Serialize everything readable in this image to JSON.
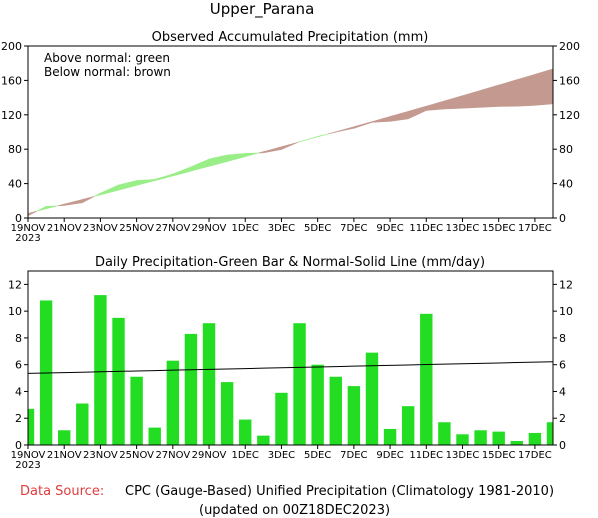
{
  "header": {
    "region": "Upper_Parana"
  },
  "footer": {
    "source_label": "Data Source:",
    "source_text": "CPC (Gauge-Based) Unified Precipitation (Climatology 1981-2010)",
    "updated": "(updated on 00Z18DEC2023)"
  },
  "colors": {
    "above": "#99ee88",
    "below": "#c49a90",
    "bar": "#22dd22",
    "bar_edge": "#119911",
    "line": "#000000"
  },
  "chart_data": [
    {
      "type": "area",
      "title": "Observed Accumulated Precipitation (mm)",
      "annotations": [
        "Above normal: green",
        "Below normal: brown"
      ],
      "x_labels": [
        "19NOV",
        "21NOV",
        "23NOV",
        "25NOV",
        "27NOV",
        "29NOV",
        "1DEC",
        "3DEC",
        "5DEC",
        "7DEC",
        "9DEC",
        "11DEC",
        "13DEC",
        "15DEC",
        "17DEC"
      ],
      "x_year": "2023",
      "dates": [
        "19NOV",
        "20NOV",
        "21NOV",
        "22NOV",
        "23NOV",
        "24NOV",
        "25NOV",
        "26NOV",
        "27NOV",
        "28NOV",
        "29NOV",
        "30NOV",
        "1DEC",
        "2DEC",
        "3DEC",
        "4DEC",
        "5DEC",
        "6DEC",
        "7DEC",
        "8DEC",
        "9DEC",
        "10DEC",
        "11DEC",
        "12DEC",
        "13DEC",
        "14DEC",
        "15DEC",
        "16DEC",
        "17DEC",
        "18DEC"
      ],
      "ylim": [
        0,
        200
      ],
      "yticks": [
        0,
        40,
        80,
        120,
        160,
        200
      ],
      "series": [
        {
          "name": "Observed",
          "values": [
            2.7,
            13.5,
            14.6,
            17.7,
            28.9,
            38.4,
            43.5,
            44.8,
            51.1,
            59.4,
            68.5,
            73.2,
            75.1,
            75.8,
            79.7,
            88.8,
            94.8,
            99.9,
            104.3,
            111.2,
            112.4,
            115.3,
            125.1,
            126.8,
            127.6,
            128.7,
            129.7,
            130.0,
            131.0,
            132.7
          ]
        },
        {
          "name": "Normal",
          "values": [
            5.3,
            10.7,
            16.1,
            21.5,
            26.9,
            32.4,
            37.9,
            43.4,
            48.9,
            54.5,
            60.1,
            65.7,
            71.4,
            77.1,
            82.8,
            88.6,
            94.4,
            100.2,
            106.1,
            112.0,
            118.0,
            124.0,
            130.0,
            136.1,
            142.2,
            148.4,
            154.6,
            160.8,
            167.0,
            173.3
          ]
        }
      ]
    },
    {
      "type": "bar",
      "title": "Daily Precipitation-Green Bar & Normal-Solid Line (mm/day)",
      "x_labels": [
        "19NOV",
        "21NOV",
        "23NOV",
        "25NOV",
        "27NOV",
        "29NOV",
        "1DEC",
        "3DEC",
        "5DEC",
        "7DEC",
        "9DEC",
        "11DEC",
        "13DEC",
        "15DEC",
        "17DEC"
      ],
      "x_year": "2023",
      "categories": [
        "19NOV",
        "20NOV",
        "21NOV",
        "22NOV",
        "23NOV",
        "24NOV",
        "25NOV",
        "26NOV",
        "27NOV",
        "28NOV",
        "29NOV",
        "30NOV",
        "1DEC",
        "2DEC",
        "3DEC",
        "4DEC",
        "5DEC",
        "6DEC",
        "7DEC",
        "8DEC",
        "9DEC",
        "10DEC",
        "11DEC",
        "12DEC",
        "13DEC",
        "14DEC",
        "15DEC",
        "16DEC",
        "17DEC",
        "18DEC"
      ],
      "ylim": [
        0,
        13
      ],
      "yticks": [
        0,
        2,
        4,
        6,
        8,
        10,
        12
      ],
      "series": [
        {
          "name": "Daily",
          "values": [
            2.7,
            10.8,
            1.1,
            3.1,
            11.2,
            9.5,
            5.1,
            1.3,
            6.3,
            8.3,
            9.1,
            4.7,
            1.9,
            0.7,
            3.9,
            9.1,
            6.0,
            5.1,
            4.4,
            6.9,
            1.2,
            2.9,
            9.8,
            1.7,
            0.8,
            1.1,
            1.0,
            0.3,
            0.9,
            1.7
          ]
        },
        {
          "name": "Normal",
          "values": [
            5.35,
            5.38,
            5.41,
            5.44,
            5.47,
            5.5,
            5.53,
            5.56,
            5.59,
            5.62,
            5.65,
            5.68,
            5.71,
            5.74,
            5.77,
            5.8,
            5.83,
            5.86,
            5.89,
            5.92,
            5.95,
            5.98,
            6.01,
            6.04,
            6.07,
            6.1,
            6.13,
            6.16,
            6.19,
            6.22
          ]
        }
      ]
    }
  ]
}
